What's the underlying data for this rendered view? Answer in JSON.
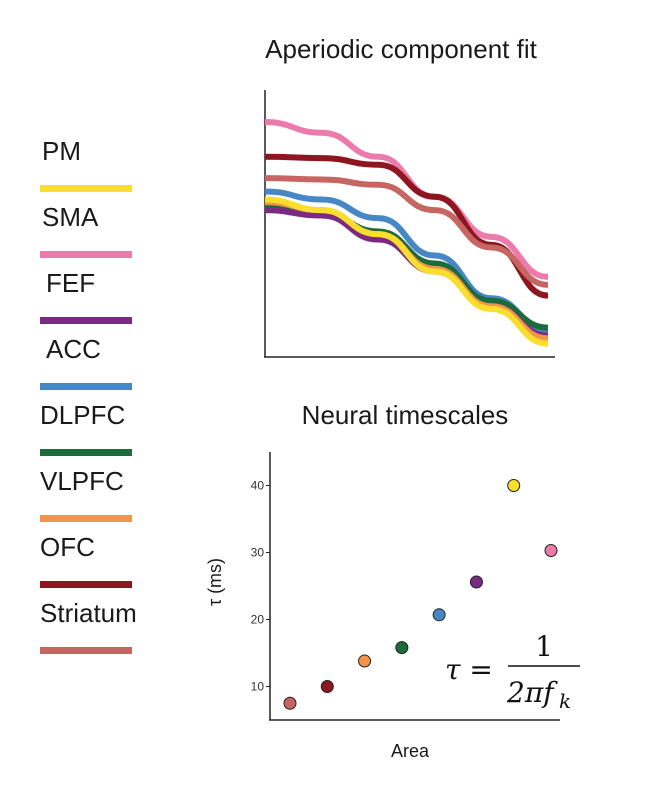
{
  "legend": {
    "items": [
      {
        "label": "PM",
        "color": "#F9DE2E"
      },
      {
        "label": "SMA",
        "color": "#EC7BAC"
      },
      {
        "label": "FEF",
        "color": "#7B2A82"
      },
      {
        "label": "ACC",
        "color": "#4787C6"
      },
      {
        "label": "DLPFC",
        "color": "#1B6B3B"
      },
      {
        "label": "VLPFC",
        "color": "#F0954A"
      },
      {
        "label": "OFC",
        "color": "#8D1620"
      },
      {
        "label": "Striatum",
        "color": "#C66562"
      }
    ]
  },
  "chart_data": [
    {
      "type": "line",
      "title": "Aperiodic component fit",
      "xlabel": "",
      "ylabel": "",
      "x": [
        0,
        0.2,
        0.4,
        0.6,
        0.8,
        1.0
      ],
      "series": [
        {
          "name": "SMA",
          "color": "#EC7BAC",
          "values": [
            0.88,
            0.84,
            0.75,
            0.6,
            0.45,
            0.3
          ]
        },
        {
          "name": "OFC",
          "color": "#8D1620",
          "values": [
            0.75,
            0.745,
            0.72,
            0.6,
            0.42,
            0.23
          ]
        },
        {
          "name": "Striatum",
          "color": "#C66562",
          "values": [
            0.67,
            0.665,
            0.645,
            0.55,
            0.41,
            0.27
          ]
        },
        {
          "name": "ACC",
          "color": "#4787C6",
          "values": [
            0.62,
            0.59,
            0.52,
            0.38,
            0.22,
            0.1
          ]
        },
        {
          "name": "DLPFC",
          "color": "#1B6B3B",
          "values": [
            0.56,
            0.54,
            0.47,
            0.35,
            0.21,
            0.11
          ]
        },
        {
          "name": "FEF",
          "color": "#7B2A82",
          "values": [
            0.55,
            0.53,
            0.44,
            0.32,
            0.19,
            0.08
          ]
        },
        {
          "name": "VLPFC",
          "color": "#F0954A",
          "values": [
            0.58,
            0.55,
            0.46,
            0.33,
            0.19,
            0.07
          ]
        },
        {
          "name": "PM",
          "color": "#F9DE2E",
          "values": [
            0.59,
            0.55,
            0.46,
            0.32,
            0.18,
            0.05
          ]
        }
      ]
    },
    {
      "type": "scatter",
      "title": "Neural timescales",
      "xlabel": "Area",
      "ylabel": "τ (ms)",
      "ylim": [
        5,
        45
      ],
      "yticks": [
        "10",
        "20",
        "30",
        "40"
      ],
      "points": [
        {
          "area": "Striatum",
          "tau": 7.5,
          "color": "#C66562"
        },
        {
          "area": "OFC",
          "tau": 10,
          "color": "#8D1620"
        },
        {
          "area": "VLPFC",
          "tau": 13.8,
          "color": "#F0954A"
        },
        {
          "area": "DLPFC",
          "tau": 15.8,
          "color": "#1B6B3B"
        },
        {
          "area": "ACC",
          "tau": 20.7,
          "color": "#4787C6"
        },
        {
          "area": "FEF",
          "tau": 25.6,
          "color": "#7B2A82"
        },
        {
          "area": "PM",
          "tau": 40,
          "color": "#F9DE2E"
        },
        {
          "area": "SMA",
          "tau": 30.3,
          "color": "#EC7BAC"
        }
      ],
      "formula": {
        "lhs": "τ =",
        "numerator": "1",
        "denominator": "2πf",
        "subscript": "k"
      }
    }
  ]
}
